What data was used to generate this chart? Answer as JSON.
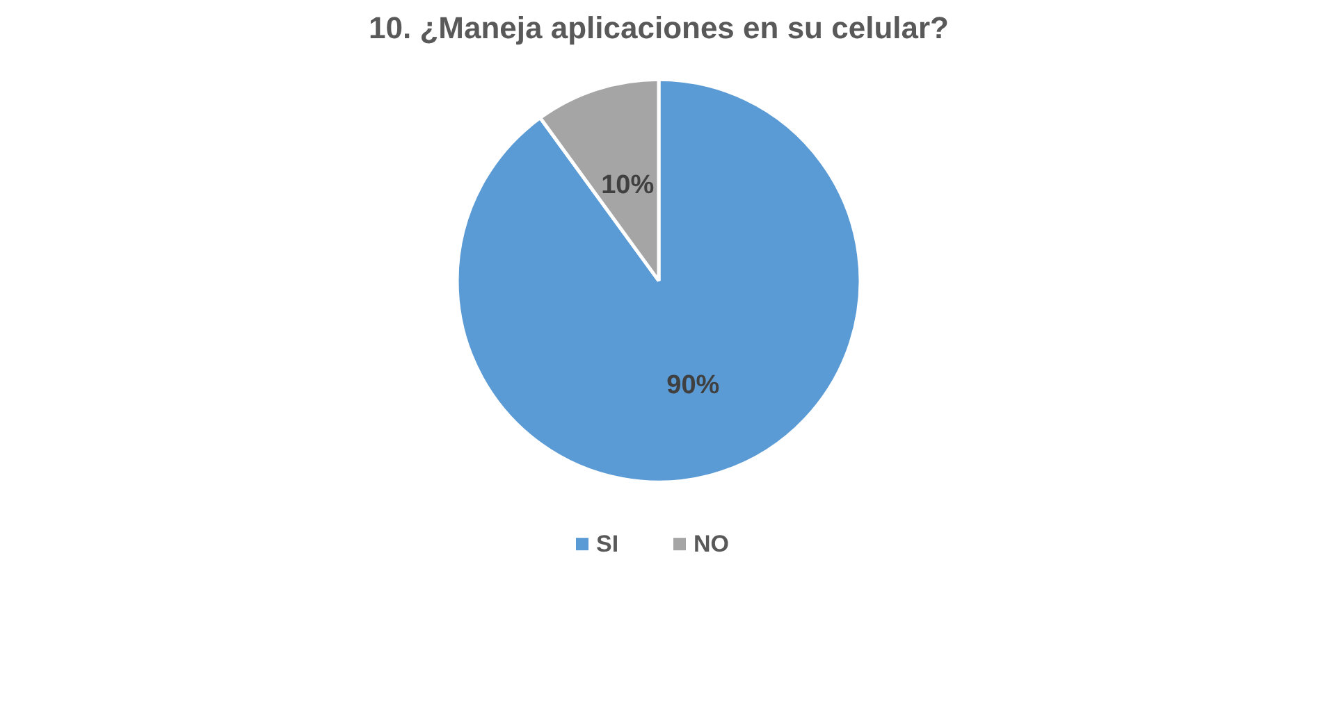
{
  "chart_data": {
    "type": "pie",
    "title": "10. ¿Maneja aplicaciones en su celular?",
    "categories": [
      "SI",
      "NO"
    ],
    "values": [
      90,
      10
    ],
    "colors": [
      "#5b9bd5",
      "#a5a5a5"
    ],
    "data_labels": true,
    "value_labels": [
      "90%",
      "10%"
    ],
    "legend": "bottom"
  }
}
